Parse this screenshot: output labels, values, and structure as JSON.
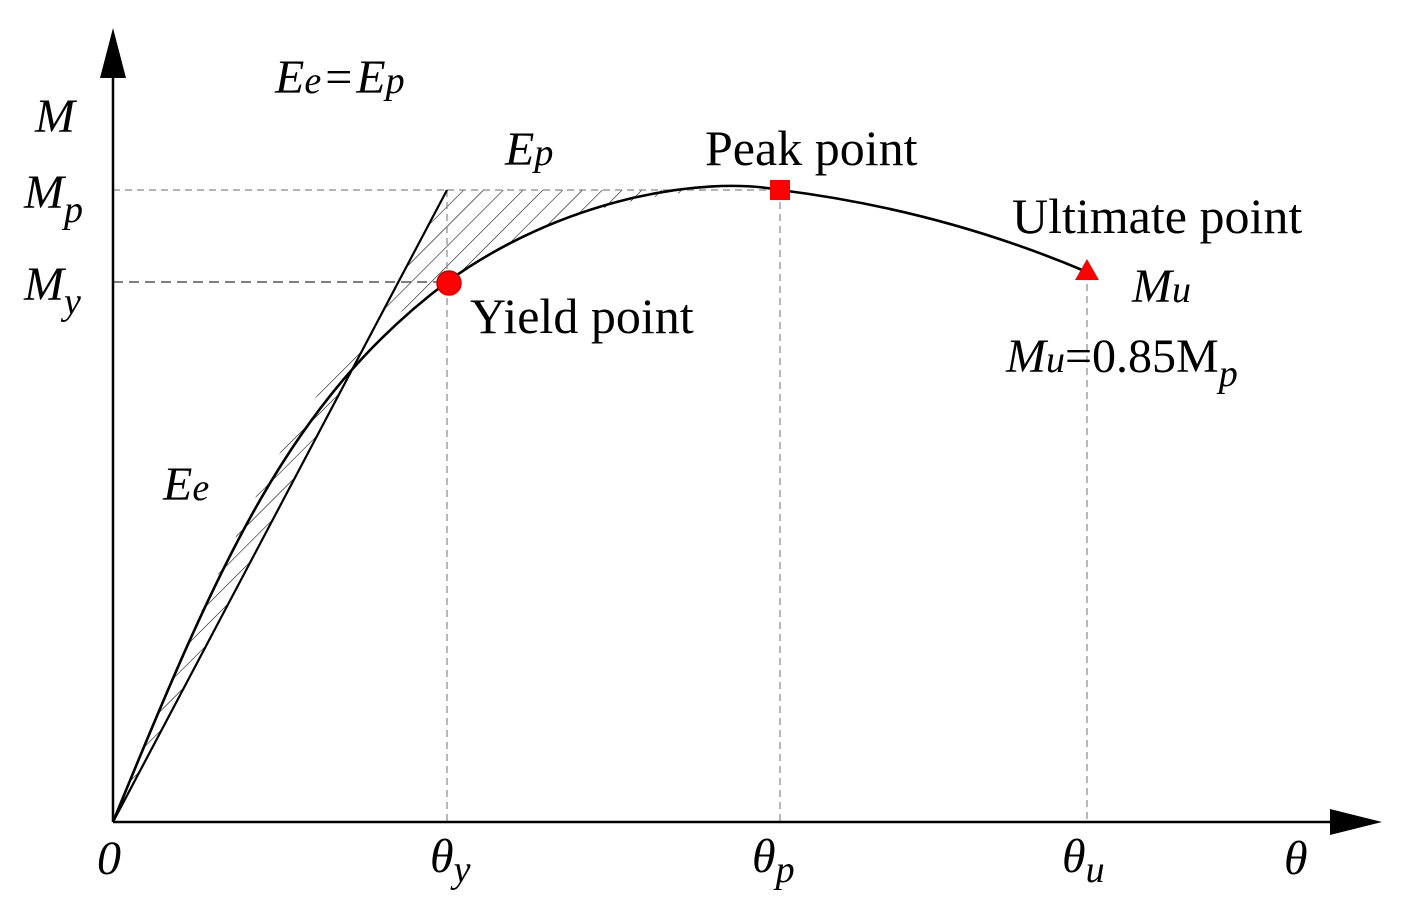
{
  "axes": {
    "y_label": "M",
    "x_label": "θ",
    "origin_label": "0"
  },
  "y_ticks": [
    {
      "main": "M",
      "sub": "p"
    },
    {
      "main": "M",
      "sub": "y"
    }
  ],
  "x_ticks": [
    {
      "main": "θ",
      "sub": "y"
    },
    {
      "main": "θ",
      "sub": "p"
    },
    {
      "main": "θ",
      "sub": "u"
    }
  ],
  "annotations": {
    "energy_equation": {
      "lhs_main": "E",
      "lhs_sub": "e",
      "eq": "=",
      "rhs_main": "E",
      "rhs_sub": "p"
    },
    "ep_label": {
      "main": "E",
      "sub": "p"
    },
    "ee_label": {
      "main": "E",
      "sub": "e"
    },
    "peak_point": "Peak point",
    "ultimate_point": "Ultimate point",
    "yield_point": "Yield point",
    "mu_label": {
      "main": "M",
      "sub": "u"
    },
    "mu_equation": {
      "main": "M",
      "sub": "u",
      "rest": "=0.85M",
      "tail_sub": "p"
    }
  },
  "colors": {
    "axis": "#000000",
    "curve": "#000000",
    "guide": "#7f7f7f",
    "marker": "#ff0000",
    "hatch": "#000000"
  },
  "markers": [
    {
      "name": "yield-point",
      "shape": "circle"
    },
    {
      "name": "peak-point",
      "shape": "square"
    },
    {
      "name": "ultimate-point",
      "shape": "triangle"
    }
  ]
}
